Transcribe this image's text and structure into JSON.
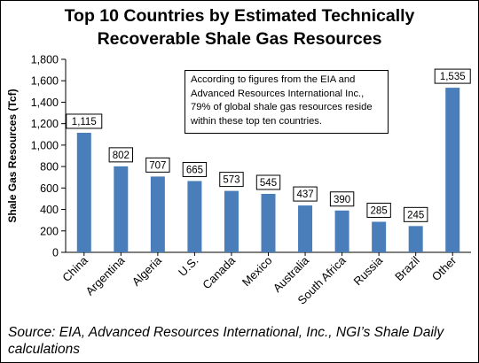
{
  "title_line1": "Top 10 Countries by Estimated Technically",
  "title_line2": "Recoverable Shale Gas Resources",
  "annotation": "According to figures from the EIA and Advanced Resources International Inc., 79% of global shale gas resources reside within these top ten countries.",
  "source": "Source: EIA, Advanced Resources International, Inc., NGI’s Shale Daily calculations",
  "chart_data": {
    "type": "bar",
    "title": "Top 10 Countries by Estimated Technically Recoverable Shale Gas Resources",
    "xlabel": "",
    "ylabel": "Shale Gas Resources (Tcf)",
    "categories": [
      "China",
      "Argentina",
      "Algeria",
      "U.S.",
      "Canada",
      "Mexico",
      "Australia",
      "South Africa",
      "Russia",
      "Brazil",
      "Other"
    ],
    "values": [
      1115,
      802,
      707,
      665,
      573,
      545,
      437,
      390,
      285,
      245,
      1535
    ],
    "data_labels": [
      "1,115",
      "802",
      "707",
      "665",
      "573",
      "545",
      "437",
      "390",
      "285",
      "245",
      "1,535"
    ],
    "ylim": [
      0,
      1800
    ],
    "yticks": [
      "0",
      "200",
      "400",
      "600",
      "800",
      "1,000",
      "1,200",
      "1,400",
      "1,600",
      "1,800"
    ],
    "bar_color": "#4a7ebb",
    "grid": false,
    "legend": "none"
  }
}
